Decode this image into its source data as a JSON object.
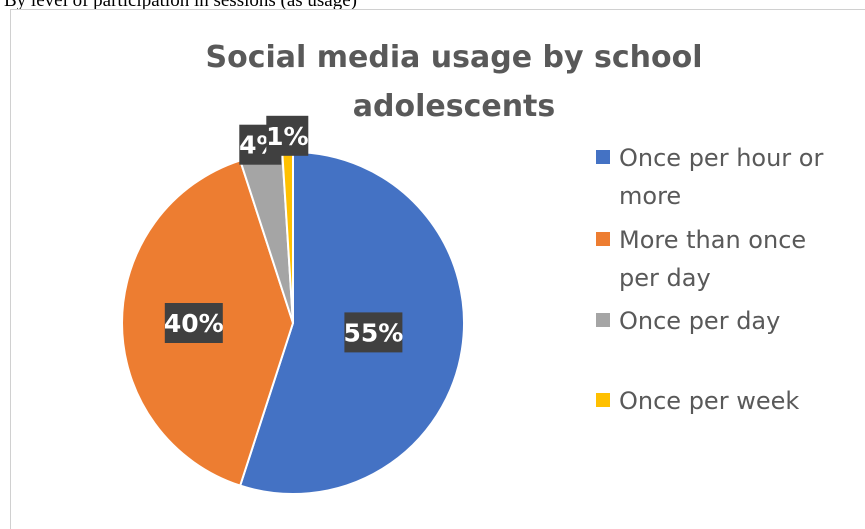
{
  "caption": {
    "text": "By level of participation in sessions (as usage)"
  },
  "chart_data": {
    "type": "pie",
    "title": "Social media usage by school adolescents",
    "title_lines": [
      "Social media usage by school",
      "adolescents"
    ],
    "categories": [
      "Once per hour or more",
      "More than once per day",
      "Once per day",
      "Once per week"
    ],
    "values": [
      55,
      40,
      4,
      1
    ],
    "data_labels": [
      "55%",
      "40%",
      "4%",
      "1%"
    ],
    "legend_lines": [
      [
        "Once per hour or",
        "more"
      ],
      [
        "More than once",
        "per day"
      ],
      [
        "Once per day"
      ],
      [
        "Once per week"
      ]
    ],
    "colors": [
      "#4472c4",
      "#ed7d31",
      "#a5a5a5",
      "#ffc000"
    ],
    "legend_position": "right",
    "label_style": "white text on dark box"
  }
}
